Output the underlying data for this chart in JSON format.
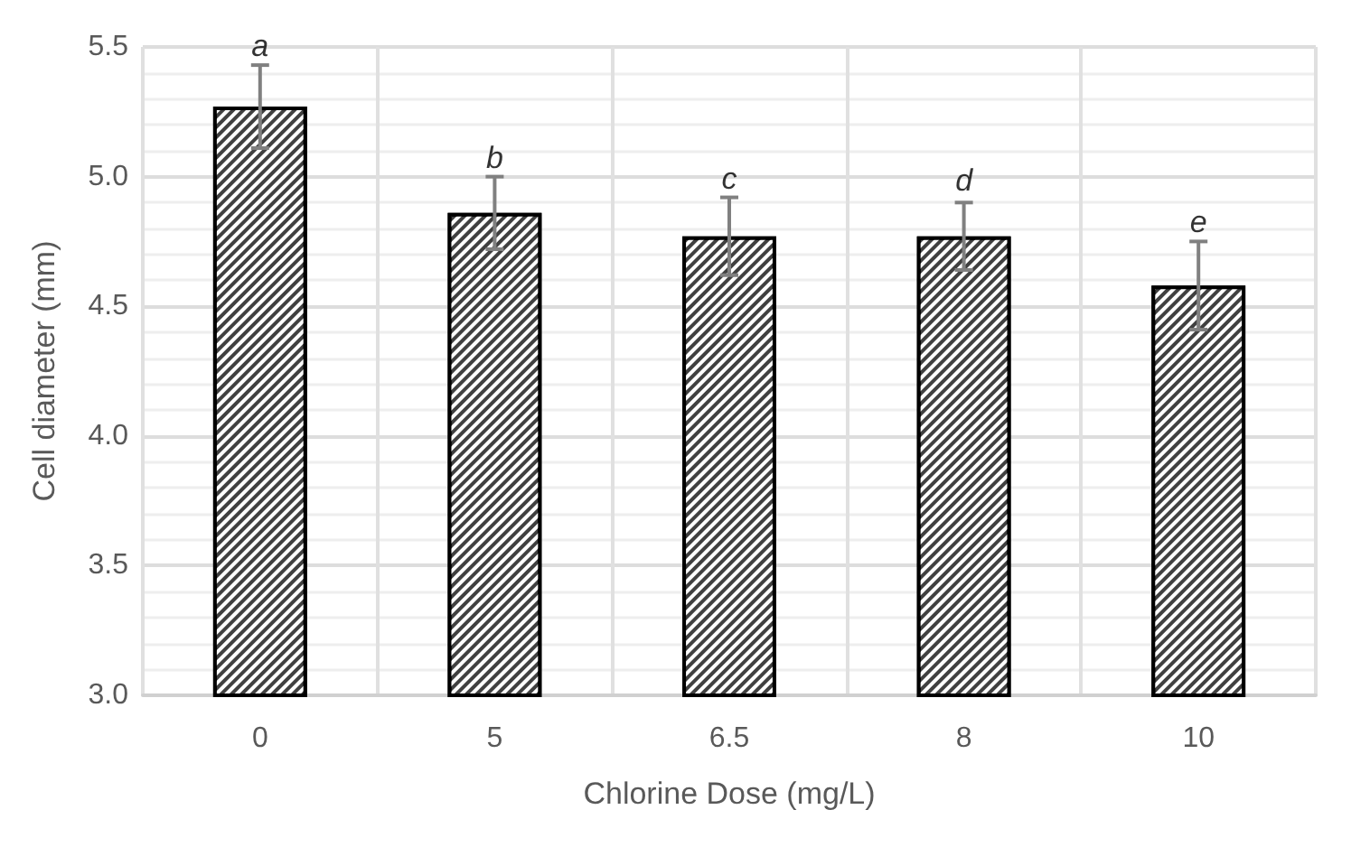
{
  "chart_data": {
    "type": "bar",
    "xlabel": "Chlorine Dose (mg/L)",
    "ylabel": "Cell diameter (mm)",
    "categories": [
      "0",
      "5",
      "6.5",
      "8",
      "10"
    ],
    "values": [
      5.27,
      4.86,
      4.77,
      4.77,
      4.58
    ],
    "errors": [
      0.16,
      0.14,
      0.15,
      0.13,
      0.17
    ],
    "color": "#404040",
    "ylim": [
      3,
      5.5
    ],
    "yticks": [
      {
        "value": 3,
        "label": "3.0"
      },
      {
        "value": 3.5,
        "label": "3.5"
      },
      {
        "value": 4,
        "label": "4.0"
      },
      {
        "value": 4.5,
        "label": "4.5"
      },
      {
        "value": 5,
        "label": "5.0"
      },
      {
        "value": 5.5,
        "label": "5.5"
      }
    ],
    "grid": true,
    "annotations": [
      {
        "text": "a",
        "x": "0",
        "y": 5.43
      },
      {
        "text": "b",
        "x": "5",
        "y": 5.0
      },
      {
        "text": "c",
        "x": "6.5",
        "y": 4.92
      },
      {
        "text": "d",
        "x": "8",
        "y": 4.91
      },
      {
        "text": "e",
        "x": "10",
        "y": 4.75
      }
    ]
  }
}
